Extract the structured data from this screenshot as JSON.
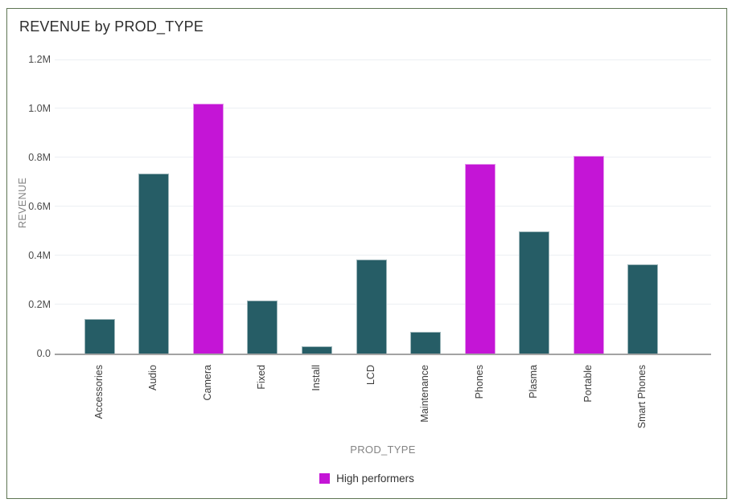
{
  "header": {
    "title": "REVENUE by PROD_TYPE"
  },
  "chart_data": {
    "type": "bar",
    "title": "REVENUE by PROD_TYPE",
    "xlabel": "PROD_TYPE",
    "ylabel": "REVENUE",
    "ylim": [
      0,
      1200000
    ],
    "y_tick_values": [
      0,
      200000,
      400000,
      600000,
      800000,
      1000000,
      1200000
    ],
    "y_tick_labels": [
      "0.0",
      "0.2M",
      "0.4M",
      "0.6M",
      "0.8M",
      "1.0M",
      "1.2M"
    ],
    "grid": "horizontal-only",
    "categories": [
      "Accessories",
      "Audio",
      "Camera",
      "Fixed",
      "Install",
      "LCD",
      "Maintenance",
      "Phones",
      "Plasma",
      "Portable",
      "Smart Phones"
    ],
    "values": [
      140000,
      735000,
      1020000,
      215000,
      30000,
      385000,
      90000,
      775000,
      500000,
      805000,
      365000
    ],
    "highlighted_categories": [
      "Camera",
      "Phones",
      "Portable"
    ],
    "legend": {
      "position": "bottom-center",
      "items": [
        {
          "label": "High performers",
          "color": "#C415D6"
        }
      ]
    },
    "colors": {
      "bar_default": "#265D66",
      "bar_highlight": "#C415D6"
    }
  },
  "colors": {
    "background": "#FFFFFF",
    "card_border": "#5E7553",
    "gridline": "#ECEFF3",
    "axis_line": "#A3A3A3",
    "title_text": "#2D2D2D",
    "tick_text": "#4B4B4B",
    "axis_title_text": "#848484",
    "legend_text": "#333333"
  }
}
